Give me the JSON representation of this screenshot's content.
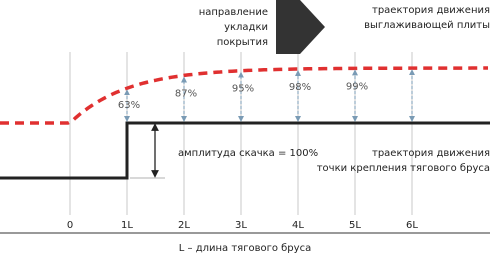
{
  "direction_label": [
    "направление",
    "укладки",
    "покрытия"
  ],
  "plate_label": [
    "траектория движения",
    "выглаживающей плиты"
  ],
  "percentages": [
    "63%",
    "87%",
    "95%",
    "98%",
    "99%"
  ],
  "amplitude_label": "амплитуда скачка = 100%",
  "bar_label": [
    "траектория движения",
    "точки крепления тягового бруса"
  ],
  "x_labels": [
    "0",
    "1L",
    "2L",
    "3L",
    "4L",
    "5L",
    "6L"
  ],
  "caption": "L – длина тягового бруса"
}
